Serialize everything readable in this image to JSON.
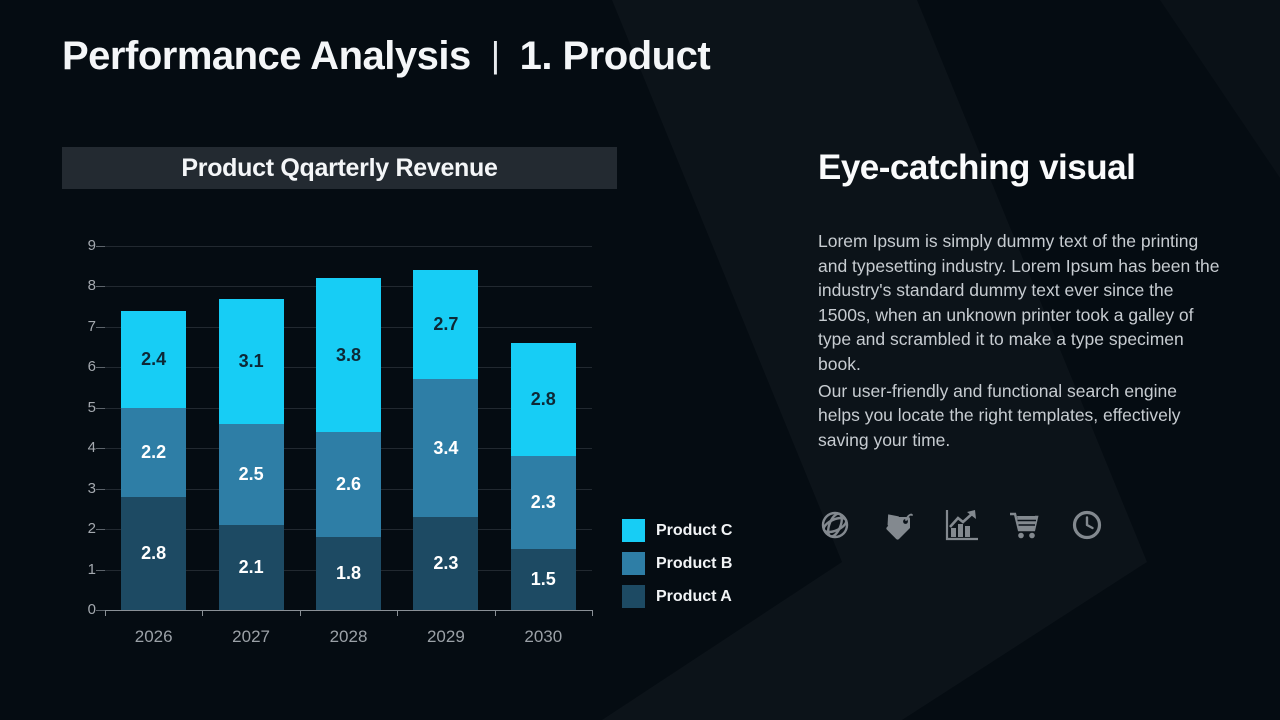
{
  "slide": {
    "title_part1": "Performance Analysis",
    "title_divider": "|",
    "title_part2": "1. Product"
  },
  "chart_title": "Product Qqarterly Revenue",
  "chart_data": {
    "type": "bar",
    "stacked": true,
    "title": "Product Qqarterly Revenue",
    "categories": [
      "2026",
      "2027",
      "2028",
      "2029",
      "2030"
    ],
    "series": [
      {
        "name": "Product A",
        "color": "#1d4a63",
        "label_color": "#ffffff",
        "values": [
          2.8,
          2.1,
          1.8,
          2.3,
          1.5
        ]
      },
      {
        "name": "Product B",
        "color": "#2e7ea6",
        "label_color": "#ffffff",
        "values": [
          2.2,
          2.5,
          2.6,
          3.4,
          2.3
        ]
      },
      {
        "name": "Product C",
        "color": "#17cdf5",
        "label_color": "#0d2836",
        "values": [
          2.4,
          3.1,
          3.8,
          2.7,
          2.8
        ]
      }
    ],
    "totals": [
      7.4,
      7.7,
      8.2,
      8.4,
      6.6
    ],
    "xlabel": "",
    "ylabel": "",
    "ylim": [
      0,
      9
    ],
    "ytick_step": 1,
    "grid": true,
    "legend_position": "right-bottom",
    "legend_order": [
      "Product C",
      "Product B",
      "Product A"
    ]
  },
  "right_panel": {
    "heading": "Eye-catching visual",
    "paragraph1": "Lorem Ipsum is simply dummy text of the printing and typesetting industry. Lorem Ipsum has been the industry's standard dummy text ever since the 1500s, when an unknown printer took a galley of type and scrambled it to make a type specimen book.",
    "paragraph2": "Our user-friendly and functional search engine helps you locate the right templates, effectively saving your time.",
    "icons": [
      "globe-network-icon",
      "price-tag-icon",
      "growth-chart-icon",
      "shopping-cart-icon",
      "clock-icon"
    ]
  },
  "colors": {
    "background": "#050c12",
    "background_band": "rgba(255,255,255,0.032)",
    "panel_bar": "#232a31",
    "text_primary": "#f4f6f8",
    "text_body": "#c7ccd1",
    "text_axis": "#9ba1a7",
    "gridline": "#222930",
    "axis_line": "#8a9096",
    "icon_gray": "#83898f",
    "product_a": "#1d4a63",
    "product_b": "#2e7ea6",
    "product_c": "#17cdf5"
  }
}
